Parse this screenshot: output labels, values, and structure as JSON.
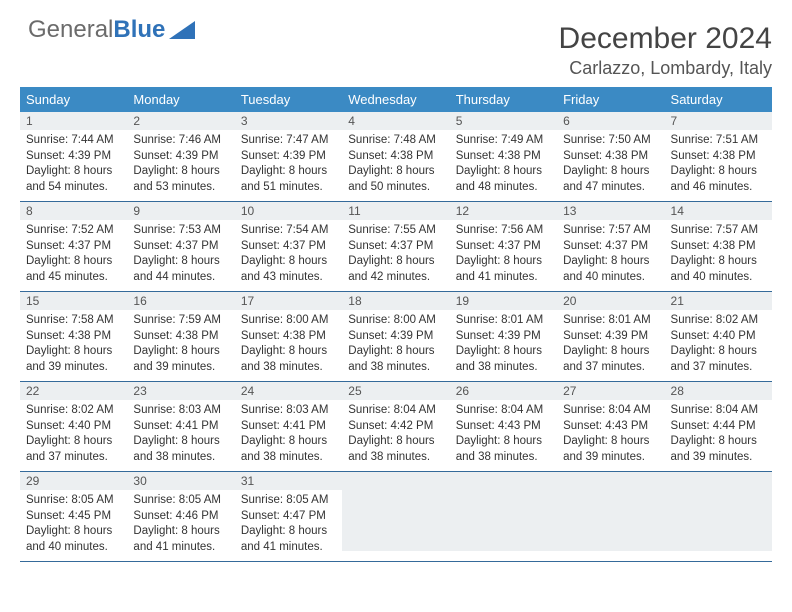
{
  "brand": {
    "part1": "General",
    "part2": "Blue"
  },
  "title": "December 2024",
  "location": "Carlazzo, Lombardy, Italy",
  "colors": {
    "header_bg": "#3b8ac4",
    "header_fg": "#ffffff",
    "row_divider": "#356a9a",
    "daynum_bg": "#eceff1",
    "text": "#333333",
    "title": "#444444",
    "brand_gray": "#6b6b6b",
    "brand_blue": "#2f72b8"
  },
  "typography": {
    "title_fontsize": 30,
    "sub_fontsize": 18,
    "header_fontsize": 13,
    "daynum_fontsize": 12,
    "body_fontsize": 11.5
  },
  "weekdays": [
    "Sunday",
    "Monday",
    "Tuesday",
    "Wednesday",
    "Thursday",
    "Friday",
    "Saturday"
  ],
  "weeks": [
    [
      {
        "n": "1",
        "sr": "Sunrise: 7:44 AM",
        "ss": "Sunset: 4:39 PM",
        "d1": "Daylight: 8 hours",
        "d2": "and 54 minutes."
      },
      {
        "n": "2",
        "sr": "Sunrise: 7:46 AM",
        "ss": "Sunset: 4:39 PM",
        "d1": "Daylight: 8 hours",
        "d2": "and 53 minutes."
      },
      {
        "n": "3",
        "sr": "Sunrise: 7:47 AM",
        "ss": "Sunset: 4:39 PM",
        "d1": "Daylight: 8 hours",
        "d2": "and 51 minutes."
      },
      {
        "n": "4",
        "sr": "Sunrise: 7:48 AM",
        "ss": "Sunset: 4:38 PM",
        "d1": "Daylight: 8 hours",
        "d2": "and 50 minutes."
      },
      {
        "n": "5",
        "sr": "Sunrise: 7:49 AM",
        "ss": "Sunset: 4:38 PM",
        "d1": "Daylight: 8 hours",
        "d2": "and 48 minutes."
      },
      {
        "n": "6",
        "sr": "Sunrise: 7:50 AM",
        "ss": "Sunset: 4:38 PM",
        "d1": "Daylight: 8 hours",
        "d2": "and 47 minutes."
      },
      {
        "n": "7",
        "sr": "Sunrise: 7:51 AM",
        "ss": "Sunset: 4:38 PM",
        "d1": "Daylight: 8 hours",
        "d2": "and 46 minutes."
      }
    ],
    [
      {
        "n": "8",
        "sr": "Sunrise: 7:52 AM",
        "ss": "Sunset: 4:37 PM",
        "d1": "Daylight: 8 hours",
        "d2": "and 45 minutes."
      },
      {
        "n": "9",
        "sr": "Sunrise: 7:53 AM",
        "ss": "Sunset: 4:37 PM",
        "d1": "Daylight: 8 hours",
        "d2": "and 44 minutes."
      },
      {
        "n": "10",
        "sr": "Sunrise: 7:54 AM",
        "ss": "Sunset: 4:37 PM",
        "d1": "Daylight: 8 hours",
        "d2": "and 43 minutes."
      },
      {
        "n": "11",
        "sr": "Sunrise: 7:55 AM",
        "ss": "Sunset: 4:37 PM",
        "d1": "Daylight: 8 hours",
        "d2": "and 42 minutes."
      },
      {
        "n": "12",
        "sr": "Sunrise: 7:56 AM",
        "ss": "Sunset: 4:37 PM",
        "d1": "Daylight: 8 hours",
        "d2": "and 41 minutes."
      },
      {
        "n": "13",
        "sr": "Sunrise: 7:57 AM",
        "ss": "Sunset: 4:37 PM",
        "d1": "Daylight: 8 hours",
        "d2": "and 40 minutes."
      },
      {
        "n": "14",
        "sr": "Sunrise: 7:57 AM",
        "ss": "Sunset: 4:38 PM",
        "d1": "Daylight: 8 hours",
        "d2": "and 40 minutes."
      }
    ],
    [
      {
        "n": "15",
        "sr": "Sunrise: 7:58 AM",
        "ss": "Sunset: 4:38 PM",
        "d1": "Daylight: 8 hours",
        "d2": "and 39 minutes."
      },
      {
        "n": "16",
        "sr": "Sunrise: 7:59 AM",
        "ss": "Sunset: 4:38 PM",
        "d1": "Daylight: 8 hours",
        "d2": "and 39 minutes."
      },
      {
        "n": "17",
        "sr": "Sunrise: 8:00 AM",
        "ss": "Sunset: 4:38 PM",
        "d1": "Daylight: 8 hours",
        "d2": "and 38 minutes."
      },
      {
        "n": "18",
        "sr": "Sunrise: 8:00 AM",
        "ss": "Sunset: 4:39 PM",
        "d1": "Daylight: 8 hours",
        "d2": "and 38 minutes."
      },
      {
        "n": "19",
        "sr": "Sunrise: 8:01 AM",
        "ss": "Sunset: 4:39 PM",
        "d1": "Daylight: 8 hours",
        "d2": "and 38 minutes."
      },
      {
        "n": "20",
        "sr": "Sunrise: 8:01 AM",
        "ss": "Sunset: 4:39 PM",
        "d1": "Daylight: 8 hours",
        "d2": "and 37 minutes."
      },
      {
        "n": "21",
        "sr": "Sunrise: 8:02 AM",
        "ss": "Sunset: 4:40 PM",
        "d1": "Daylight: 8 hours",
        "d2": "and 37 minutes."
      }
    ],
    [
      {
        "n": "22",
        "sr": "Sunrise: 8:02 AM",
        "ss": "Sunset: 4:40 PM",
        "d1": "Daylight: 8 hours",
        "d2": "and 37 minutes."
      },
      {
        "n": "23",
        "sr": "Sunrise: 8:03 AM",
        "ss": "Sunset: 4:41 PM",
        "d1": "Daylight: 8 hours",
        "d2": "and 38 minutes."
      },
      {
        "n": "24",
        "sr": "Sunrise: 8:03 AM",
        "ss": "Sunset: 4:41 PM",
        "d1": "Daylight: 8 hours",
        "d2": "and 38 minutes."
      },
      {
        "n": "25",
        "sr": "Sunrise: 8:04 AM",
        "ss": "Sunset: 4:42 PM",
        "d1": "Daylight: 8 hours",
        "d2": "and 38 minutes."
      },
      {
        "n": "26",
        "sr": "Sunrise: 8:04 AM",
        "ss": "Sunset: 4:43 PM",
        "d1": "Daylight: 8 hours",
        "d2": "and 38 minutes."
      },
      {
        "n": "27",
        "sr": "Sunrise: 8:04 AM",
        "ss": "Sunset: 4:43 PM",
        "d1": "Daylight: 8 hours",
        "d2": "and 39 minutes."
      },
      {
        "n": "28",
        "sr": "Sunrise: 8:04 AM",
        "ss": "Sunset: 4:44 PM",
        "d1": "Daylight: 8 hours",
        "d2": "and 39 minutes."
      }
    ],
    [
      {
        "n": "29",
        "sr": "Sunrise: 8:05 AM",
        "ss": "Sunset: 4:45 PM",
        "d1": "Daylight: 8 hours",
        "d2": "and 40 minutes."
      },
      {
        "n": "30",
        "sr": "Sunrise: 8:05 AM",
        "ss": "Sunset: 4:46 PM",
        "d1": "Daylight: 8 hours",
        "d2": "and 41 minutes."
      },
      {
        "n": "31",
        "sr": "Sunrise: 8:05 AM",
        "ss": "Sunset: 4:47 PM",
        "d1": "Daylight: 8 hours",
        "d2": "and 41 minutes."
      },
      null,
      null,
      null,
      null
    ]
  ]
}
